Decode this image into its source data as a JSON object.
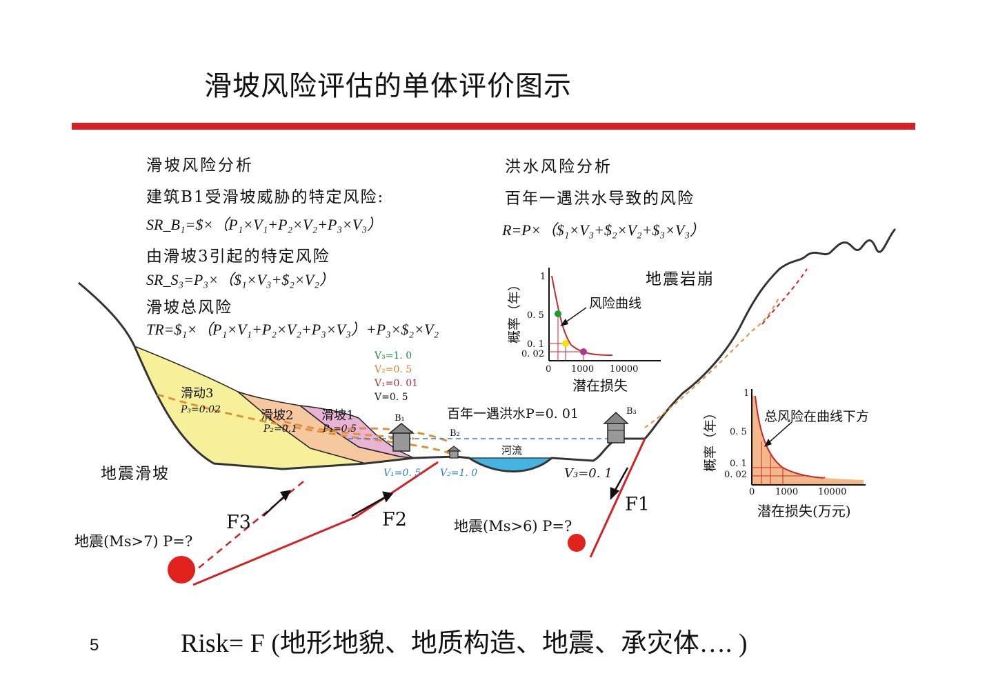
{
  "title": "滑坡风险评估的单体评价图示",
  "page_number": "5",
  "bottom_formula": "Risk= F (地形地貌、地质构造、地震、承灾体…. )",
  "landslide": {
    "heading": "滑坡风险分析",
    "l1": "建筑B1受滑坡威胁的特定风险:",
    "f1": "SR_B₁=$×（P₁×V₁+P₂×V₂+P₃×V₃）",
    "l2": "由滑坡3引起的特定风险",
    "f2": "SR_S₃=P₃×（$₁×V₃+$₂×V₂）",
    "l3": "滑坡总风险",
    "f3": "TR=$₁×（P₁×V₁+P₂×V₂+P₃×V₃）+P₃×$₂×V₂"
  },
  "flood": {
    "heading": "洪水风险分析",
    "l1": "百年一遇洪水导致的风险",
    "f1": "R=P×（$₁×V₃+$₂×V₂+$₃×V₃）"
  },
  "labels": {
    "rock_collapse": "地震岩崩",
    "eq_landslide": "地震滑坡",
    "slide3": "滑动3",
    "p3": "P₃=0.02",
    "slide2": "滑坡2",
    "p2": "P₂=0.1",
    "slide1": "滑坡1",
    "p1": "P₁=0.5",
    "v3": "V₃=1. 0",
    "v2": "V₂=0. 5",
    "v1": "V₁=0. 01",
    "v": "V=0. 5",
    "flood_100": "百年一遇洪水P=0. 01",
    "river": "河流",
    "b1": "B₁",
    "b2": "B₂",
    "b3": "B₃",
    "b1_v": "V₁=0. 5",
    "b2_v": "V₂=1. 0",
    "b3_v": "V₃=0. 1",
    "f1": "F1",
    "f2": "F2",
    "f3": "F3",
    "eq_ms7": "地震(Ms>7) P=?",
    "eq_ms6": "地震(Ms>6) P=?"
  },
  "risk_curve": {
    "annotation": "风险曲线",
    "ylabel": "概率（年）",
    "xlabel": "潜在损失",
    "y_ticks": [
      "1",
      "0. 5",
      "0. 1",
      "0. 02"
    ],
    "x_ticks": [
      "0",
      "1000",
      "10000"
    ],
    "point_colors": [
      "#1f9a3a",
      "#f2e300",
      "#b0388a"
    ],
    "curve_color": "#c8262e"
  },
  "total_risk": {
    "annotation": "总风险在曲线下方",
    "ylabel": "概率（年）",
    "xlabel": "潜在损失(万元)",
    "y_ticks": [
      "1",
      "0. 5",
      "0. 1",
      "0. 02"
    ],
    "x_ticks": [
      "0",
      "1000",
      "10000"
    ],
    "fill_color": "#f3b98a"
  },
  "colors": {
    "accent_red": "#d42027",
    "slide3_fill": "#f6f09a",
    "slide2_fill": "#f6c8a0",
    "slide1_fill": "#e8b4d6",
    "river_fill": "#45b4e0",
    "dash_orange": "#e0913a",
    "fault_red": "#d42027"
  }
}
